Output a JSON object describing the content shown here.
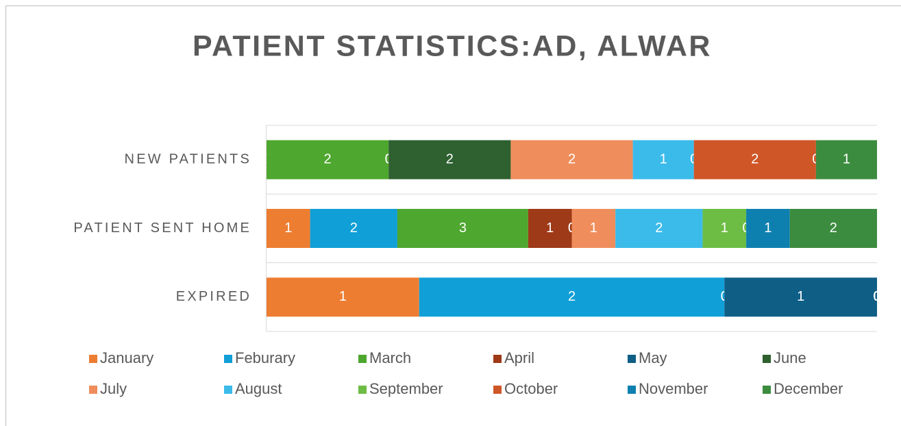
{
  "chart_data": {
    "type": "bar",
    "orientation": "horizontal",
    "stacked": "percent",
    "title": "PATIENT STATISTICS:AD, ALWAR",
    "categories": [
      "NEW PATIENTS",
      "PATIENT SENT HOME",
      "EXPIRED"
    ],
    "grid": true,
    "series": [
      {
        "name": "January",
        "color": "#ed7d31",
        "values": [
          0,
          1,
          1
        ]
      },
      {
        "name": "Feburary",
        "color": "#109fd6",
        "values": [
          0,
          2,
          2
        ]
      },
      {
        "name": "March",
        "color": "#4ea72e",
        "values": [
          2,
          3,
          0
        ]
      },
      {
        "name": "April",
        "color": "#9e3a18",
        "values": [
          0,
          1,
          0
        ]
      },
      {
        "name": "May",
        "color": "#0e5e86",
        "values": [
          0,
          0,
          1
        ]
      },
      {
        "name": "June",
        "color": "#2e6030",
        "values": [
          2,
          0,
          0
        ]
      },
      {
        "name": "July",
        "color": "#ef8e5c",
        "values": [
          2,
          1,
          0
        ]
      },
      {
        "name": "August",
        "color": "#3bbbea",
        "values": [
          1,
          2,
          0
        ]
      },
      {
        "name": "September",
        "color": "#6dbd45",
        "values": [
          0,
          1,
          0
        ]
      },
      {
        "name": "October",
        "color": "#cf5627",
        "values": [
          2,
          0,
          0
        ]
      },
      {
        "name": "November",
        "color": "#0d80b0",
        "values": [
          0,
          1,
          0
        ]
      },
      {
        "name": "December",
        "color": "#3c8c3f",
        "values": [
          1,
          2,
          0
        ]
      }
    ]
  }
}
